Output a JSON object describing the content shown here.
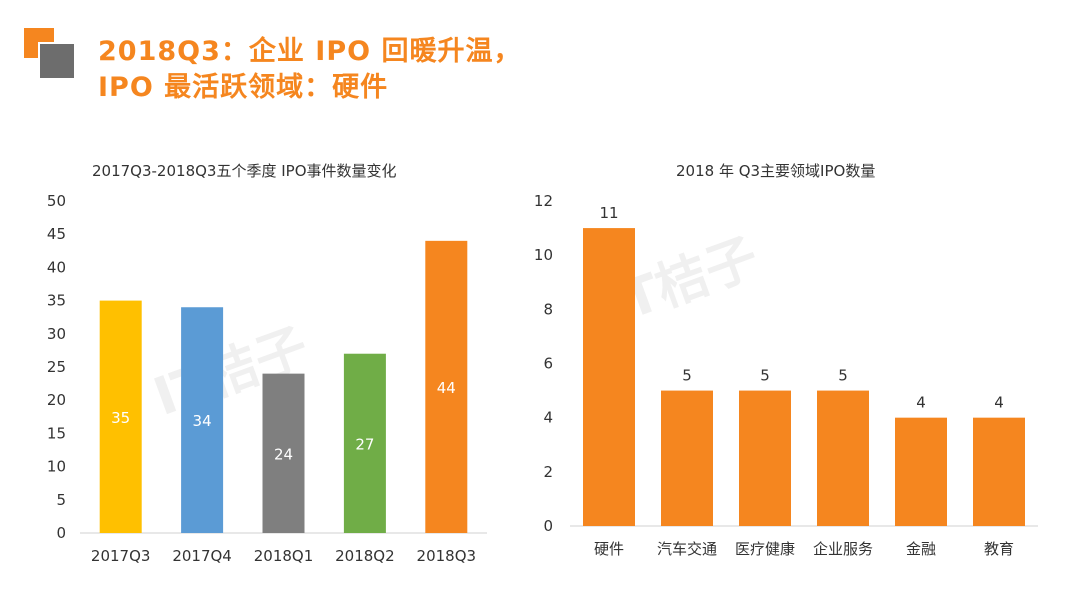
{
  "header": {
    "title_line1": "2018Q3：企业 IPO 回暖升温，",
    "title_line2": "IPO 最活跃领域：硬件"
  },
  "watermark": "IT桔子",
  "colors": {
    "accent": "#f5861f",
    "gray": "#6d6d6d"
  },
  "chart_data": [
    {
      "type": "bar",
      "title": "2017Q3-2018Q3五个季度  IPO事件数量变化",
      "categories": [
        "2017Q3",
        "2017Q4",
        "2018Q1",
        "2018Q2",
        "2018Q3"
      ],
      "values": [
        35,
        34,
        24,
        27,
        44
      ],
      "bar_colors": [
        "#ffc000",
        "#5b9bd5",
        "#7f7f7f",
        "#70ad47",
        "#f5861f"
      ],
      "data_labels": [
        "35",
        "34",
        "24",
        "27",
        "44"
      ],
      "label_position": "inside-middle",
      "ylim": [
        0,
        50
      ],
      "yticks": [
        0,
        5,
        10,
        15,
        20,
        25,
        30,
        35,
        40,
        45,
        50
      ],
      "xlabel": "",
      "ylabel": "",
      "grid": false
    },
    {
      "type": "bar",
      "title": "2018 年 Q3主要领域IPO数量",
      "categories": [
        "硬件",
        "汽车交通",
        "医疗健康",
        "企业服务",
        "金融",
        "教育"
      ],
      "values": [
        11,
        5,
        5,
        5,
        4,
        4
      ],
      "bar_colors": [
        "#f5861f",
        "#f5861f",
        "#f5861f",
        "#f5861f",
        "#f5861f",
        "#f5861f"
      ],
      "data_labels": [
        "11",
        "5",
        "5",
        "5",
        "4",
        "4"
      ],
      "label_position": "above",
      "ylim": [
        0,
        12
      ],
      "yticks": [
        0,
        2,
        4,
        6,
        8,
        10,
        12
      ],
      "xlabel": "",
      "ylabel": "",
      "grid": false
    }
  ]
}
